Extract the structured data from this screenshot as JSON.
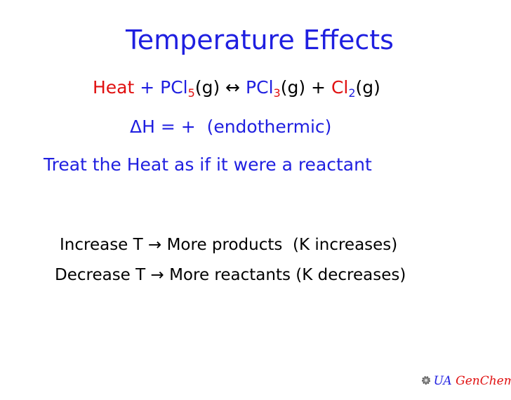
{
  "title": "Temperature Effects",
  "equation": [
    "Heat",
    " + PCl",
    "5",
    "(g) ",
    "↔",
    " PCl",
    "3",
    "(g) + ",
    "Cl",
    "2",
    "(g)"
  ],
  "enthalpy": "ΔH = +  (endothermic)",
  "rule": "Treat the Heat as if it were a reactant",
  "effects": [
    "Increase T → More products  (K increases)",
    "Decrease T → More reactants (K decreases)"
  ],
  "footer": {
    "left": "UA",
    "right": "GenChem"
  }
}
